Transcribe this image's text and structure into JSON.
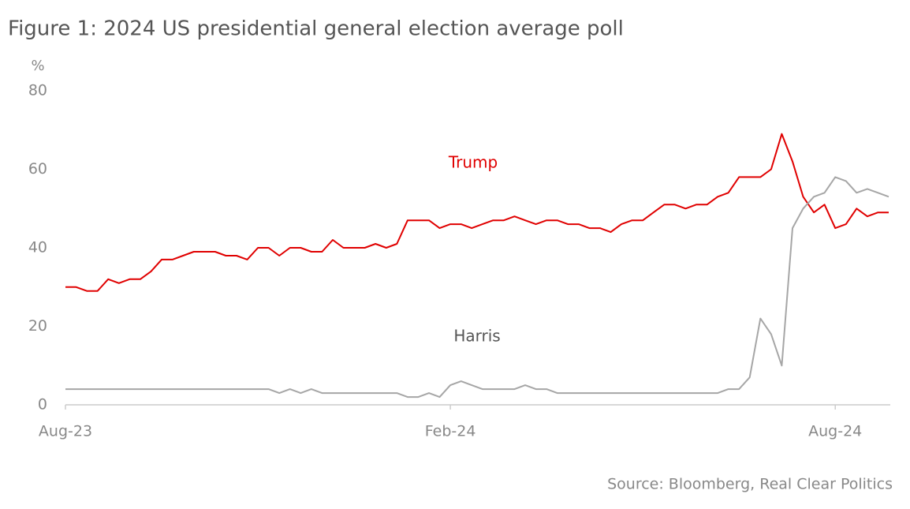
{
  "chart_data": {
    "type": "line",
    "title": "Figure 1: 2024 US presidential general election average poll",
    "y_label": "%",
    "source": "Source: Bloomberg, Real Clear Politics",
    "categories": [
      "Aug-23",
      null,
      null,
      null,
      null,
      null,
      null,
      null,
      null,
      null,
      null,
      null,
      null,
      null,
      null,
      null,
      null,
      null,
      null,
      null,
      null,
      null,
      null,
      null,
      null,
      null,
      null,
      null,
      null,
      null,
      null,
      null,
      null,
      null,
      null,
      null,
      "Feb-24",
      null,
      null,
      null,
      null,
      null,
      null,
      null,
      null,
      null,
      null,
      null,
      null,
      null,
      null,
      null,
      null,
      null,
      null,
      null,
      null,
      null,
      null,
      null,
      null,
      null,
      null,
      null,
      null,
      null,
      null,
      null,
      null,
      null,
      null,
      null,
      "Aug-24",
      null,
      null,
      null,
      null,
      null
    ],
    "series": [
      {
        "name": "Trump",
        "color": "#e00000",
        "values": [
          30,
          30,
          29,
          29,
          32,
          31,
          32,
          32,
          34,
          37,
          37,
          38,
          39,
          39,
          39,
          38,
          38,
          37,
          40,
          40,
          38,
          40,
          40,
          39,
          39,
          42,
          40,
          40,
          40,
          41,
          40,
          41,
          47,
          47,
          47,
          45,
          46,
          46,
          45,
          46,
          47,
          47,
          48,
          47,
          46,
          47,
          47,
          46,
          46,
          45,
          45,
          44,
          46,
          47,
          47,
          49,
          51,
          51,
          50,
          51,
          51,
          53,
          54,
          58,
          58,
          58,
          60,
          69,
          62,
          53,
          49,
          51,
          45,
          46,
          50,
          48,
          49,
          49
        ]
      },
      {
        "name": "Harris",
        "color": "#a6a6a6",
        "values": [
          4,
          4,
          4,
          4,
          4,
          4,
          4,
          4,
          4,
          4,
          4,
          4,
          4,
          4,
          4,
          4,
          4,
          4,
          4,
          4,
          3,
          4,
          3,
          4,
          3,
          3,
          3,
          3,
          3,
          3,
          3,
          3,
          2,
          2,
          3,
          2,
          5,
          6,
          5,
          4,
          4,
          4,
          4,
          5,
          4,
          4,
          3,
          3,
          3,
          3,
          3,
          3,
          3,
          3,
          3,
          3,
          3,
          3,
          3,
          3,
          3,
          3,
          4,
          4,
          7,
          22,
          18,
          10,
          45,
          50,
          53,
          54,
          58,
          57,
          54,
          55,
          54,
          53
        ]
      }
    ],
    "ylim": [
      0,
      80
    ],
    "yticks": [
      0,
      20,
      40,
      60,
      80
    ],
    "grid": false
  }
}
